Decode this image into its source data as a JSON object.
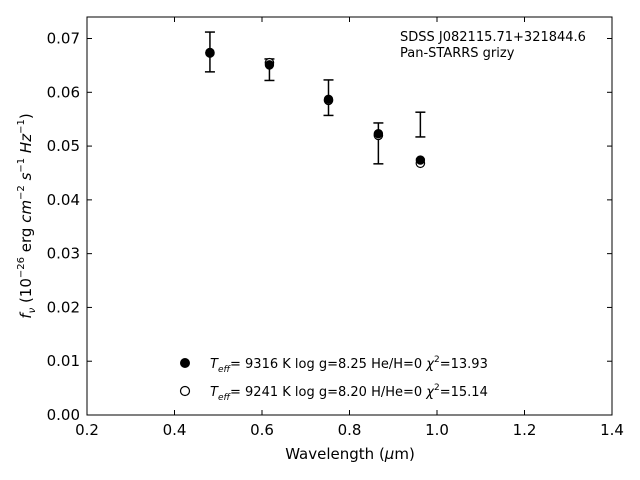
{
  "chart_data": {
    "type": "scatter",
    "title": "",
    "annotation_lines": [
      "SDSS J082115.71+321844.6",
      "Pan-STARRS grizy"
    ],
    "xlabel": "Wavelength (μm)",
    "ylabel": "f_ν (10^-26 erg cm^-2 s^-1 Hz^-1)",
    "xlim": [
      0.2,
      1.4
    ],
    "ylim": [
      0.0,
      0.074
    ],
    "xticks": [
      0.2,
      0.4,
      0.6,
      0.8,
      1.0,
      1.2,
      1.4
    ],
    "xtick_labels": [
      "0.2",
      "0.4",
      "0.6",
      "0.8",
      "1.0",
      "1.2",
      "1.4"
    ],
    "yticks": [
      0.0,
      0.01,
      0.02,
      0.03,
      0.04,
      0.05,
      0.06,
      0.07
    ],
    "ytick_labels": [
      "0.00",
      "0.01",
      "0.02",
      "0.03",
      "0.04",
      "0.05",
      "0.06",
      "0.07"
    ],
    "grid": false,
    "legend_position": "lower-center",
    "observed": {
      "x": [
        0.481,
        0.617,
        0.752,
        0.866,
        0.962
      ],
      "y": [
        0.0675,
        0.0642,
        0.059,
        0.0505,
        0.054
      ],
      "yerr": [
        0.0037,
        0.002,
        0.0033,
        0.0038,
        0.0023
      ]
    },
    "series": [
      {
        "marker": "filled-circle",
        "legend_label": "T_eff= 9316 K log g=8.25 He/H=0 χ²=13.93",
        "x": [
          0.481,
          0.617,
          0.752,
          0.866,
          0.962
        ],
        "y": [
          0.0674,
          0.0651,
          0.0587,
          0.0523,
          0.0474
        ]
      },
      {
        "marker": "open-circle",
        "legend_label": "T_eff= 9241 K log g=8.20 H/He=0 χ²=15.14",
        "x": [
          0.481,
          0.617,
          0.752,
          0.866,
          0.962
        ],
        "y": [
          0.0673,
          0.0655,
          0.0585,
          0.052,
          0.0468
        ]
      }
    ],
    "colors": {
      "marker": "#000000",
      "axes": "#000000",
      "background": "#ffffff"
    }
  }
}
